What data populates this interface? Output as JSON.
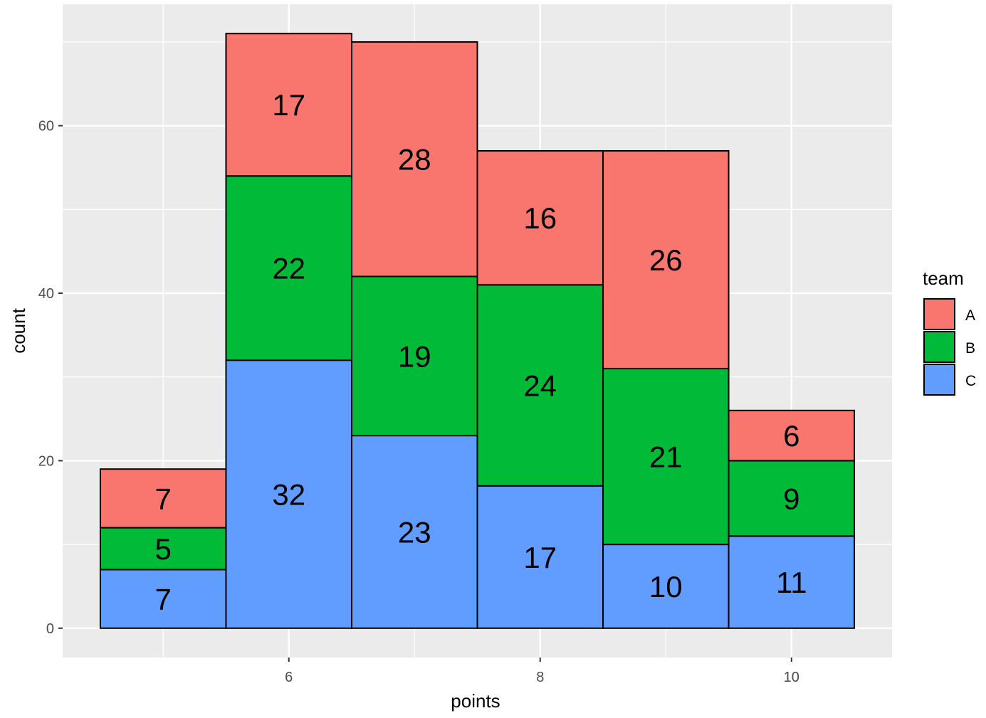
{
  "chart_data": {
    "type": "bar",
    "stacked": true,
    "title": "",
    "xlabel": "points",
    "ylabel": "count",
    "x": [
      5,
      6,
      7,
      8,
      9,
      10
    ],
    "xticks": [
      6,
      8,
      10
    ],
    "yticks": [
      0,
      20,
      40,
      60
    ],
    "xlim": [
      4.2,
      10.8
    ],
    "ylim": [
      -3.5,
      74.5
    ],
    "grid": true,
    "series": [
      {
        "name": "C",
        "color": "#619CFF",
        "values": [
          7,
          32,
          23,
          17,
          10,
          11
        ]
      },
      {
        "name": "B",
        "color": "#00BA38",
        "values": [
          5,
          22,
          19,
          24,
          21,
          9
        ]
      },
      {
        "name": "A",
        "color": "#F8766D",
        "values": [
          7,
          17,
          28,
          16,
          26,
          6
        ]
      }
    ],
    "legend": {
      "title": "team",
      "position": "right",
      "order": [
        "A",
        "B",
        "C"
      ]
    },
    "panel_background": "#EBEBEB"
  }
}
